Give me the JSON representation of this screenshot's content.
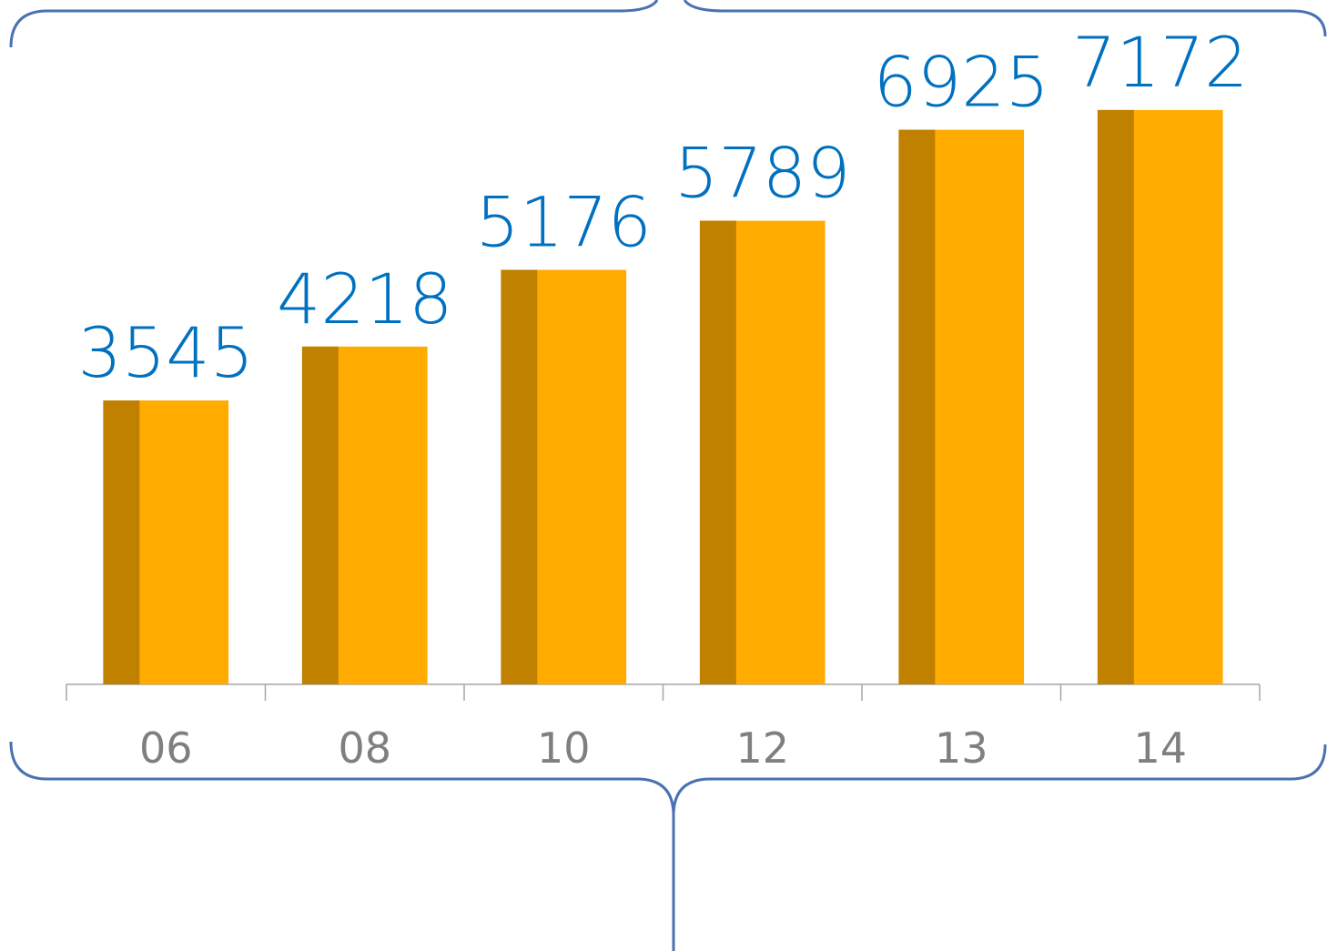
{
  "chart_data": {
    "type": "bar",
    "categories": [
      "06",
      "08",
      "10",
      "12",
      "13",
      "14"
    ],
    "values": [
      3545,
      4218,
      5176,
      5789,
      6925,
      7172
    ],
    "color": "#ffab00",
    "shade_color": "#c08000",
    "value_label_color": "#0070c0",
    "ylim": [
      0,
      8000
    ],
    "grid": false
  }
}
